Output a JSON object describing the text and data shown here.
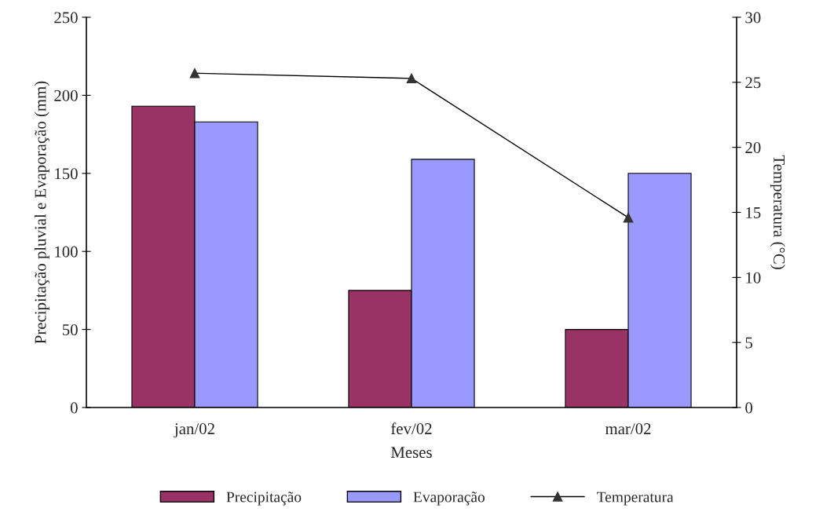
{
  "chart_data": {
    "type": "bar",
    "xlabel": "Meses",
    "ylabel": "Precipitação pluvial e Evaporação (mm)",
    "y2label": "Temperatura (°C)",
    "categories": [
      "jan/02",
      "fev/02",
      "mar/02"
    ],
    "series": [
      {
        "name": "Precipitação",
        "color": "#993366",
        "values": [
          193,
          75,
          50
        ]
      },
      {
        "name": "Evaporação",
        "color": "#9999ff",
        "values": [
          183,
          159,
          150
        ]
      },
      {
        "name": "Temperatura",
        "type": "line",
        "axis": "y2",
        "color": "#000000",
        "marker": "triangle",
        "values": [
          25.7,
          25.3,
          14.6
        ]
      }
    ],
    "ylim": [
      0,
      250
    ],
    "yticks": [
      0,
      50,
      100,
      150,
      200,
      250
    ],
    "y2lim": [
      0,
      30
    ],
    "y2ticks": [
      0,
      5,
      10,
      15,
      20,
      25,
      30
    ],
    "grid": false,
    "legend": "bottom"
  }
}
